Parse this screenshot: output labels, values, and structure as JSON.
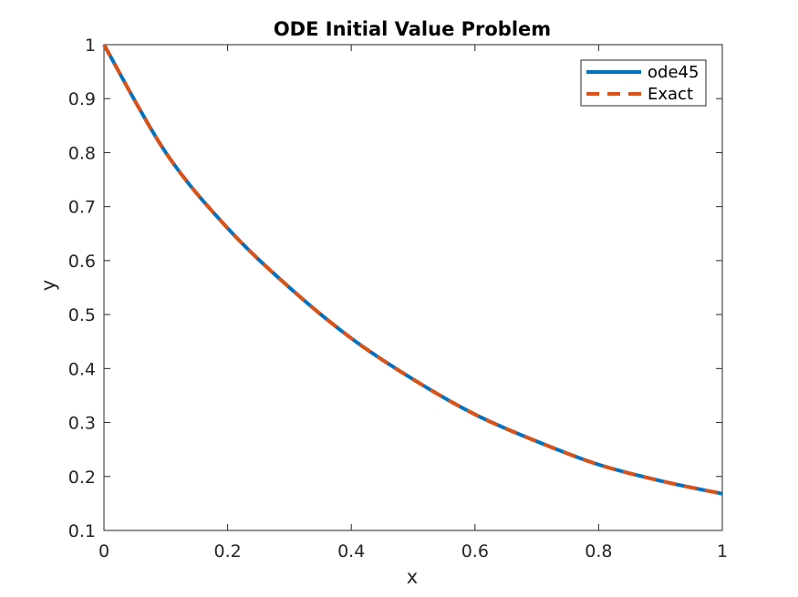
{
  "chart_data": {
    "type": "line",
    "title": "ODE Initial Value Problem",
    "xlabel": "x",
    "ylabel": "y",
    "xlim": [
      0,
      1
    ],
    "ylim": [
      0.1,
      1
    ],
    "xticks": [
      "0",
      "0.2",
      "0.4",
      "0.6",
      "0.8",
      "1"
    ],
    "yticks": [
      "0.1",
      "0.2",
      "0.3",
      "0.4",
      "0.5",
      "0.6",
      "0.7",
      "0.8",
      "0.9",
      "1"
    ],
    "grid": false,
    "legend_position": "top-right",
    "x": [
      0,
      0.1,
      0.2,
      0.3,
      0.4,
      0.5,
      0.6,
      0.7,
      0.8,
      0.9,
      1.0
    ],
    "series": [
      {
        "name": "ode45",
        "color": "#0072BD",
        "style": "solid",
        "values": [
          1.0,
          0.8,
          0.66,
          0.55,
          0.456,
          0.38,
          0.315,
          0.265,
          0.222,
          0.192,
          0.168
        ]
      },
      {
        "name": "Exact",
        "color": "#D95319",
        "style": "dashed",
        "values": [
          1.0,
          0.8,
          0.66,
          0.55,
          0.456,
          0.38,
          0.315,
          0.265,
          0.222,
          0.192,
          0.168
        ]
      }
    ]
  }
}
